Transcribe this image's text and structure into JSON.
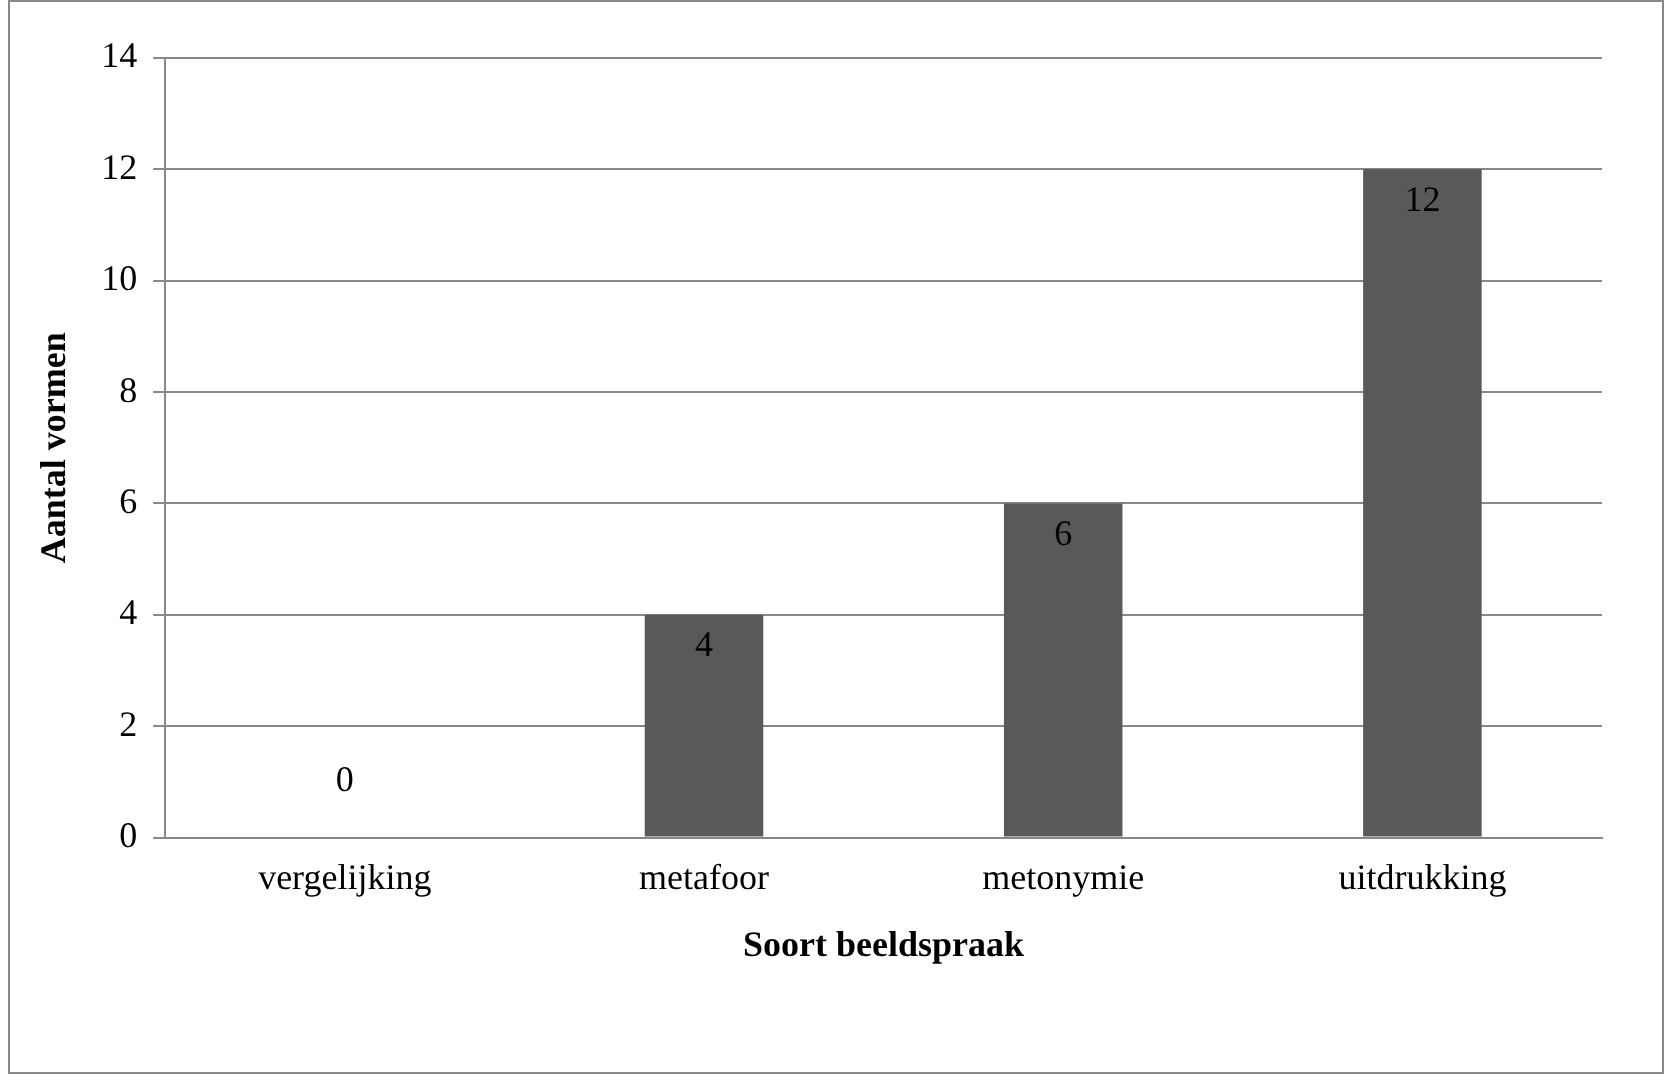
{
  "chart_data": {
    "type": "bar",
    "xlabel": "Soort beeldspraak",
    "ylabel": "Aantal vormen",
    "categories": [
      "vergelijking",
      "metafoor",
      "metonymie",
      "uitdrukking"
    ],
    "values": [
      0,
      4,
      6,
      12
    ],
    "color": "#595959",
    "ylim": [
      0,
      14
    ],
    "yticks": [
      0,
      2,
      4,
      6,
      8,
      10,
      12,
      14
    ],
    "grid": "y",
    "legend": false,
    "data_labels": true
  }
}
